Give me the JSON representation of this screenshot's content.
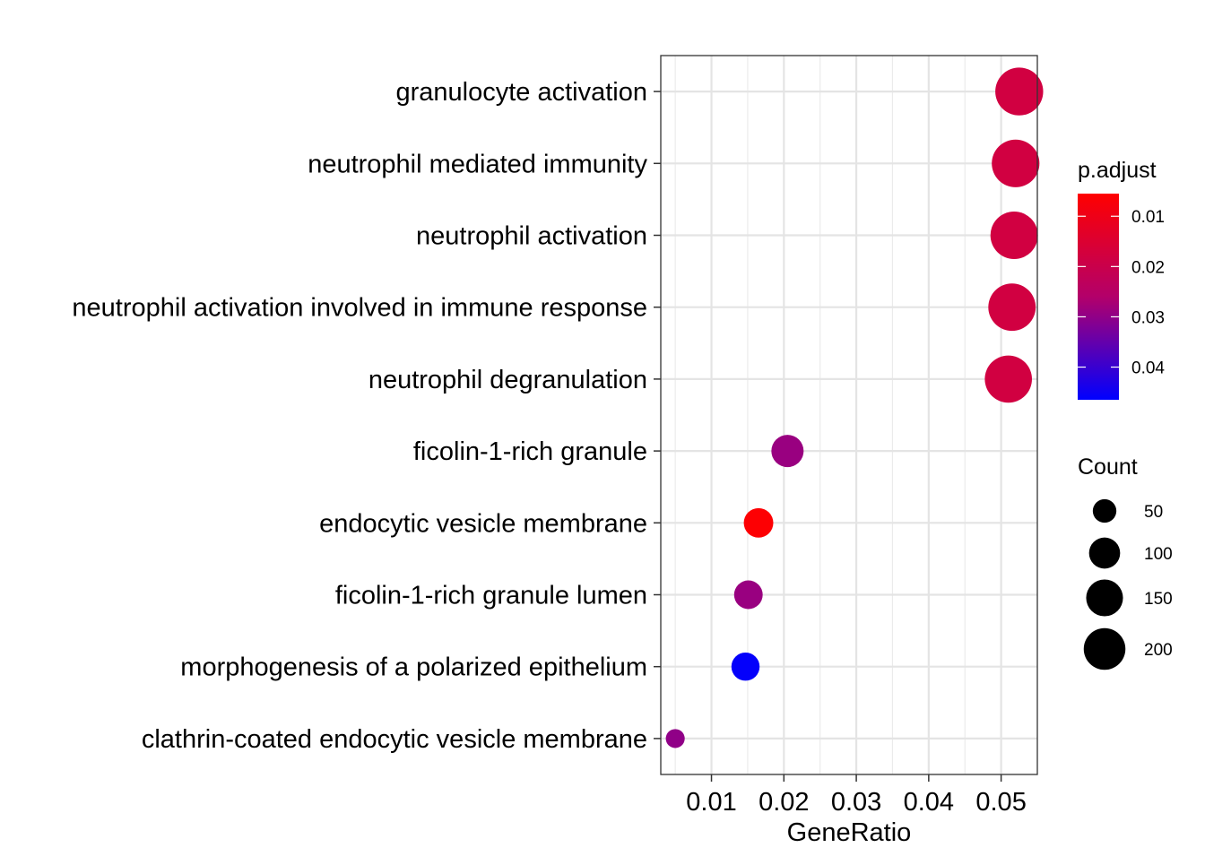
{
  "chart_data": {
    "type": "scatter",
    "xlabel": "GeneRatio",
    "ylabel": "",
    "xlim": [
      0.003,
      0.055
    ],
    "x_ticks": [
      0.01,
      0.02,
      0.03,
      0.04,
      0.05
    ],
    "x_tick_labels": [
      "0.01",
      "0.02",
      "0.03",
      "0.04",
      "0.05"
    ],
    "grid": true,
    "categories": [
      "granulocyte activation",
      "neutrophil mediated immunity",
      "neutrophil activation",
      "neutrophil activation involved in immune response",
      "neutrophil degranulation",
      "ficolin-1-rich granule",
      "endocytic vesicle membrane",
      "ficolin-1-rich granule lumen",
      "morphogenesis of a polarized epithelium",
      "clathrin-coated endocytic vesicle membrane"
    ],
    "points": [
      {
        "term": "granulocyte activation",
        "gene_ratio": 0.0525,
        "count": 205,
        "p_adjust": 0.018
      },
      {
        "term": "neutrophil mediated immunity",
        "gene_ratio": 0.052,
        "count": 203,
        "p_adjust": 0.018
      },
      {
        "term": "neutrophil activation",
        "gene_ratio": 0.0518,
        "count": 201,
        "p_adjust": 0.018
      },
      {
        "term": "neutrophil activation involved in immune response",
        "gene_ratio": 0.0515,
        "count": 200,
        "p_adjust": 0.018
      },
      {
        "term": "neutrophil degranulation",
        "gene_ratio": 0.051,
        "count": 198,
        "p_adjust": 0.018
      },
      {
        "term": "ficolin-1-rich granule",
        "gene_ratio": 0.0205,
        "count": 80,
        "p_adjust": 0.029
      },
      {
        "term": "endocytic vesicle membrane",
        "gene_ratio": 0.0165,
        "count": 64,
        "p_adjust": 0.006
      },
      {
        "term": "ficolin-1-rich granule lumen",
        "gene_ratio": 0.0151,
        "count": 59,
        "p_adjust": 0.029
      },
      {
        "term": "morphogenesis of a polarized epithelium",
        "gene_ratio": 0.0147,
        "count": 57,
        "p_adjust": 0.046
      },
      {
        "term": "clathrin-coated endocytic vesicle membrane",
        "gene_ratio": 0.005,
        "count": 19,
        "p_adjust": 0.03
      }
    ],
    "color_legend": {
      "title": "p.adjust",
      "range": [
        0.0055,
        0.0465
      ],
      "ticks": [
        0.01,
        0.02,
        0.03,
        0.04
      ],
      "tick_labels": [
        "0.01",
        "0.02",
        "0.03",
        "0.04"
      ],
      "low_color": "#ff0000",
      "high_color": "#0000ff"
    },
    "size_legend": {
      "title": "Count",
      "values": [
        50,
        100,
        150,
        200
      ],
      "labels": [
        "50",
        "100",
        "150",
        "200"
      ]
    },
    "legend_position": "right"
  }
}
